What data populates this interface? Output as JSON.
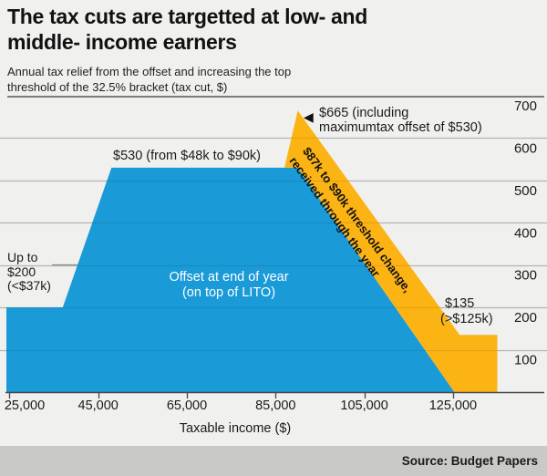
{
  "header": {
    "title_lines": [
      "The tax cuts are targetted at low- and",
      "middle- income earners"
    ],
    "subtitle_lines": [
      "Annual tax relief from the offset and increasing the top",
      "threshold of the 32.5% bracket (tax cut, $)"
    ]
  },
  "footer": {
    "source": "Source: Budget Papers"
  },
  "icons": {
    "left_arrow": "◀"
  },
  "colors": {
    "background": "#f0f0ee",
    "footer_bg": "#c9c9c6",
    "blue_area": "#1a9ad7",
    "yellow_area": "#fcb415",
    "gridline": "#c7c7c5",
    "top_rule": "#555553",
    "axis": "#464644",
    "leader_line": "#8a8a88"
  },
  "chart_data": {
    "type": "area",
    "title": "The tax cuts are targetted at low- and middle- income earners",
    "subtitle": "Annual tax relief from the offset and increasing the top threshold of the 32.5% bracket (tax cut, $)",
    "xlabel": "Taxable income ($)",
    "ylabel": "tax cut, $",
    "xlim": [
      24300,
      137000
    ],
    "ylim": [
      0,
      700
    ],
    "grid": "horizontal",
    "y_axis_side": "right",
    "x_ticks": [
      {
        "v": 25000,
        "label": "25,000"
      },
      {
        "v": 45000,
        "label": "45,000"
      },
      {
        "v": 65000,
        "label": "65,000"
      },
      {
        "v": 85000,
        "label": "85,000"
      },
      {
        "v": 105000,
        "label": "105,000"
      },
      {
        "v": 125000,
        "label": "125,000"
      }
    ],
    "y_ticks": [
      {
        "v": 700,
        "label": "700"
      },
      {
        "v": 600,
        "label": "600"
      },
      {
        "v": 500,
        "label": "500"
      },
      {
        "v": 400,
        "label": "400"
      },
      {
        "v": 300,
        "label": "300"
      },
      {
        "v": 200,
        "label": "200"
      },
      {
        "v": 100,
        "label": "100"
      }
    ],
    "series": [
      {
        "name": "Offset at end of year (on top of LITO)",
        "color": "#1a9ad7",
        "points": [
          [
            24300,
            200
          ],
          [
            37000,
            200
          ],
          [
            48000,
            530
          ],
          [
            90000,
            530
          ],
          [
            125300,
            0
          ],
          [
            24300,
            0
          ]
        ]
      },
      {
        "name": "$87k to $90k threshold change, received through the year",
        "color": "#fcb415",
        "points": [
          [
            87000,
            530
          ],
          [
            90000,
            665
          ],
          [
            126500,
            135
          ],
          [
            135000,
            135
          ],
          [
            135000,
            0
          ],
          [
            125300,
            0
          ],
          [
            90000,
            530
          ]
        ]
      }
    ],
    "annotations": {
      "up_to_200": {
        "lines": [
          "Up to",
          "$200",
          "(<$37k)"
        ]
      },
      "max_530": {
        "text": "$530 (from $48k to $90k)"
      },
      "peak_665": {
        "lines": [
          "$665 (including",
          "maximumtax offset of $530)"
        ]
      },
      "threshold_band": {
        "lines": [
          "$87k to $90k threshold change,",
          "received through the year"
        ]
      },
      "tail_135": {
        "lines": [
          "$135",
          "(>$125k)"
        ]
      },
      "offset_label": {
        "lines": [
          "Offset at end of year",
          "(on top of LITO)"
        ]
      }
    }
  }
}
